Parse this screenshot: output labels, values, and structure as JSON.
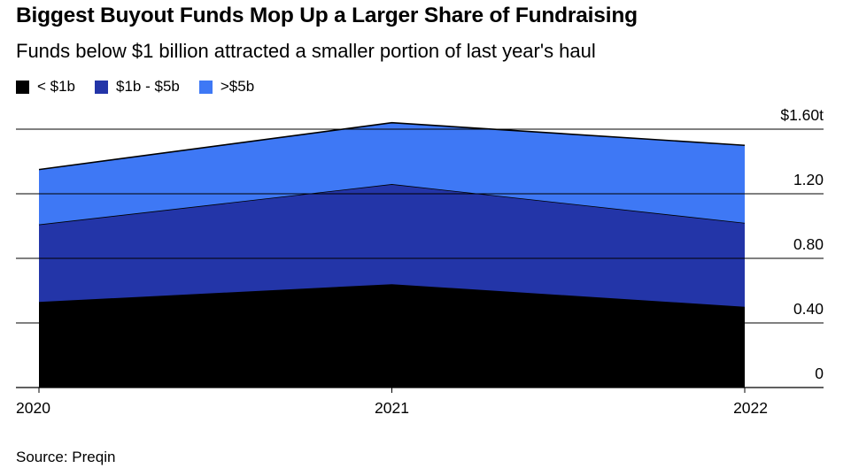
{
  "title": "Biggest Buyout Funds Mop Up a Larger Share of Fundraising",
  "subtitle": "Funds below $1 billion attracted a smaller portion of last year's haul",
  "source": "Source: Preqin",
  "colors": {
    "under_1b": "#000000",
    "1b_5b": "#2335a8",
    "over_5b": "#3e78f5"
  },
  "chart_data": {
    "type": "area",
    "stacked": true,
    "x": [
      "2020",
      "2021",
      "2022"
    ],
    "series": [
      {
        "name": "< $1b",
        "values": [
          0.53,
          0.64,
          0.5
        ],
        "color": "#000000"
      },
      {
        "name": "$1b - $5b",
        "values": [
          0.48,
          0.62,
          0.52
        ],
        "color": "#2335a8"
      },
      {
        "name": ">$5b",
        "values": [
          0.34,
          0.38,
          0.48
        ],
        "color": "#3e78f5"
      }
    ],
    "ylim": [
      0,
      1.6
    ],
    "yticks": [
      0,
      0.4,
      0.8,
      1.2,
      1.6
    ],
    "ytick_labels": [
      "0",
      "0.40",
      "0.80",
      "1.20",
      "$1.60t"
    ],
    "y_axis_side": "right",
    "grid": true,
    "legend_position": "top-left"
  }
}
